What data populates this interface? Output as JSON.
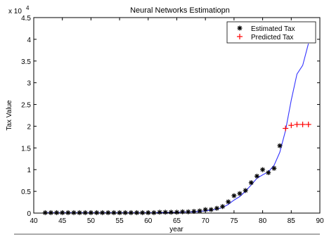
{
  "chart_data": {
    "type": "line",
    "title": "Neural Networks Estimatiopn",
    "xlabel": "year",
    "ylabel": "Tax Value",
    "y_scale_label": "x 10",
    "y_scale_exponent": "4",
    "xlim": [
      40,
      90
    ],
    "ylim": [
      0,
      4.5
    ],
    "xticks": [
      40,
      45,
      50,
      55,
      60,
      65,
      70,
      75,
      80,
      85,
      90
    ],
    "yticks": [
      0,
      0.5,
      1,
      1.5,
      2,
      2.5,
      3,
      3.5,
      4,
      4.5
    ],
    "ytick_labels": [
      "0",
      "0.5",
      "1",
      "1.5",
      "2",
      "2.5",
      "3",
      "3.5",
      "4",
      "4.5"
    ],
    "legend_position": "top-right",
    "series": [
      {
        "name": "Estimated Tax",
        "marker": "asterisk",
        "color": "#000000",
        "x": [
          42,
          43,
          44,
          45,
          46,
          47,
          48,
          49,
          50,
          51,
          52,
          53,
          54,
          55,
          56,
          57,
          58,
          59,
          60,
          61,
          62,
          63,
          64,
          65,
          66,
          67,
          68,
          69,
          70,
          71,
          72,
          73,
          74,
          75,
          76,
          77,
          78,
          79,
          80,
          81,
          82,
          83
        ],
        "y": [
          0.01,
          0.01,
          0.01,
          0.01,
          0.01,
          0.01,
          0.01,
          0.01,
          0.01,
          0.01,
          0.01,
          0.01,
          0.01,
          0.01,
          0.01,
          0.01,
          0.01,
          0.01,
          0.01,
          0.01,
          0.02,
          0.02,
          0.02,
          0.02,
          0.03,
          0.03,
          0.04,
          0.05,
          0.08,
          0.08,
          0.11,
          0.15,
          0.26,
          0.4,
          0.45,
          0.52,
          0.7,
          0.85,
          1.0,
          0.93,
          1.03,
          1.55
        ]
      },
      {
        "name": "Predicted Tax",
        "marker": "plus",
        "color": "#ff0000",
        "x": [
          84,
          85,
          86,
          87,
          88
        ],
        "y": [
          1.95,
          2.02,
          2.04,
          2.04,
          2.04
        ]
      },
      {
        "name": "",
        "marker": "none",
        "line": "solid",
        "color": "#3333ff",
        "x": [
          42,
          45,
          50,
          55,
          60,
          62,
          65,
          68,
          69,
          70,
          71,
          72,
          73,
          74,
          75,
          76,
          77,
          78,
          79,
          80,
          81,
          82,
          83,
          84,
          85,
          86,
          87,
          88
        ],
        "y": [
          0.01,
          0.01,
          0.01,
          0.01,
          0.01,
          0.01,
          0.02,
          0.03,
          0.04,
          0.05,
          0.07,
          0.09,
          0.13,
          0.2,
          0.3,
          0.38,
          0.5,
          0.65,
          0.8,
          0.88,
          0.95,
          1.1,
          1.4,
          1.9,
          2.6,
          3.2,
          3.4,
          3.9
        ]
      }
    ]
  }
}
